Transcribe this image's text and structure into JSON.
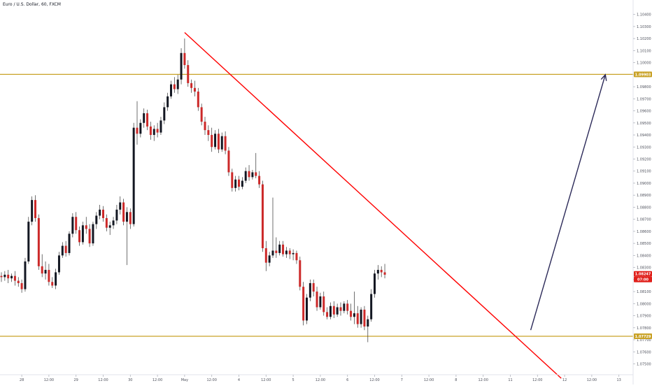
{
  "chart_data": {
    "type": "candlestick",
    "title": "Euro / U.S. Dollar, 60, FXCM",
    "ylim": [
      1.0741,
      1.1052
    ],
    "grid": false,
    "y_ticks": [
      "1.10500",
      "1.10400",
      "1.10300",
      "1.10200",
      "1.10100",
      "1.10000",
      "1.09900",
      "1.09800",
      "1.09700",
      "1.09600",
      "1.09500",
      "1.09400",
      "1.09300",
      "1.09200",
      "1.09100",
      "1.09000",
      "1.08900",
      "1.08800",
      "1.08700",
      "1.08600",
      "1.08500",
      "1.08400",
      "1.08300",
      "1.08200",
      "1.08100",
      "1.08000",
      "1.07900",
      "1.07800",
      "1.07700",
      "1.07600",
      "1.07500"
    ],
    "y_tick_values": [
      1.105,
      1.104,
      1.103,
      1.102,
      1.101,
      1.1,
      1.099,
      1.098,
      1.097,
      1.096,
      1.095,
      1.094,
      1.093,
      1.092,
      1.091,
      1.09,
      1.089,
      1.088,
      1.087,
      1.086,
      1.085,
      1.084,
      1.083,
      1.082,
      1.081,
      1.08,
      1.079,
      1.078,
      1.077,
      1.076,
      1.075
    ],
    "x_ticks": [
      "28",
      "12:00",
      "29",
      "12:00",
      "30",
      "12:00",
      "May",
      "12:00",
      "4",
      "12:00",
      "5",
      "12:00",
      "6",
      "12:00",
      "7",
      "12:00",
      "8",
      "12:00",
      "11",
      "12:00",
      "12",
      "12:00",
      "13"
    ],
    "x_tick_index": [
      6,
      14,
      22,
      30,
      38,
      46,
      54,
      62,
      70,
      78,
      86,
      94,
      102,
      110,
      118,
      126,
      134,
      142,
      150,
      158,
      166,
      174,
      182
    ],
    "series": [
      {
        "type": "ohlc",
        "ohlc": [
          [
            1.0823,
            1.0826,
            1.0818,
            1.0822
          ],
          [
            1.0822,
            1.0827,
            1.0819,
            1.0824
          ],
          [
            1.0824,
            1.0828,
            1.0817,
            1.0821
          ],
          [
            1.0821,
            1.0825,
            1.0818,
            1.0823
          ],
          [
            1.0823,
            1.0827,
            1.0815,
            1.0819
          ],
          [
            1.0819,
            1.0822,
            1.0814,
            1.0817
          ],
          [
            1.0817,
            1.082,
            1.0809,
            1.0812
          ],
          [
            1.0812,
            1.0838,
            1.081,
            1.0835
          ],
          [
            1.0835,
            1.0872,
            1.0833,
            1.0868
          ],
          [
            1.0868,
            1.0889,
            1.0865,
            1.0886
          ],
          [
            1.0886,
            1.089,
            1.0868,
            1.0871
          ],
          [
            1.0871,
            1.0874,
            1.0828,
            1.0831
          ],
          [
            1.0831,
            1.0841,
            1.0822,
            1.0825
          ],
          [
            1.0825,
            1.0835,
            1.082,
            1.0828
          ],
          [
            1.0828,
            1.0833,
            1.0815,
            1.0818
          ],
          [
            1.0818,
            1.0822,
            1.0813,
            1.0815
          ],
          [
            1.0815,
            1.0829,
            1.0812,
            1.0826
          ],
          [
            1.0826,
            1.0843,
            1.0824,
            1.084
          ],
          [
            1.084,
            1.0851,
            1.0838,
            1.0848
          ],
          [
            1.0848,
            1.0852,
            1.0839,
            1.0842
          ],
          [
            1.0842,
            1.086,
            1.084,
            1.0858
          ],
          [
            1.0858,
            1.0875,
            1.0855,
            1.0872
          ],
          [
            1.0872,
            1.0876,
            1.0858,
            1.0861
          ],
          [
            1.0861,
            1.0864,
            1.0848,
            1.0851
          ],
          [
            1.0851,
            1.0868,
            1.0849,
            1.0865
          ],
          [
            1.0865,
            1.0872,
            1.0858,
            1.0862
          ],
          [
            1.0862,
            1.0866,
            1.0847,
            1.085
          ],
          [
            1.085,
            1.0868,
            1.0848,
            1.0866
          ],
          [
            1.0866,
            1.0876,
            1.0862,
            1.0873
          ],
          [
            1.0873,
            1.0882,
            1.087,
            1.0878
          ],
          [
            1.0878,
            1.0881,
            1.0868,
            1.0871
          ],
          [
            1.0871,
            1.0874,
            1.086,
            1.0863
          ],
          [
            1.0863,
            1.0868,
            1.0857,
            1.0865
          ],
          [
            1.0865,
            1.0872,
            1.0862,
            1.0869
          ],
          [
            1.0869,
            1.0882,
            1.0866,
            1.0878
          ],
          [
            1.0878,
            1.0889,
            1.0874,
            1.0884
          ],
          [
            1.0884,
            1.0887,
            1.0865,
            1.0868
          ],
          [
            1.0868,
            1.088,
            1.0832,
            1.0876
          ],
          [
            1.0876,
            1.0879,
            1.0862,
            1.0866
          ],
          [
            1.0866,
            1.095,
            1.0864,
            1.0946
          ],
          [
            1.0946,
            1.0968,
            1.0932,
            1.0941
          ],
          [
            1.0941,
            1.0953,
            1.0938,
            1.095
          ],
          [
            1.095,
            1.0962,
            1.0946,
            1.0958
          ],
          [
            1.0958,
            1.0961,
            1.0944,
            1.0947
          ],
          [
            1.0947,
            1.0951,
            1.0936,
            1.094
          ],
          [
            1.094,
            1.0948,
            1.0935,
            1.0945
          ],
          [
            1.0945,
            1.095,
            1.0938,
            1.0942
          ],
          [
            1.0942,
            1.0955,
            1.094,
            1.0952
          ],
          [
            1.0952,
            1.0967,
            1.0949,
            1.0963
          ],
          [
            1.0963,
            1.0975,
            1.096,
            1.0972
          ],
          [
            1.0972,
            1.0985,
            1.097,
            1.0982
          ],
          [
            1.0982,
            1.0988,
            1.0975,
            1.0978
          ],
          [
            1.0978,
            1.099,
            1.0974,
            1.0986
          ],
          [
            1.0986,
            1.1012,
            1.0982,
            1.1008
          ],
          [
            1.1008,
            1.102,
            1.0995,
            1.0998
          ],
          [
            1.0998,
            1.1002,
            1.098,
            1.0983
          ],
          [
            1.0983,
            1.0986,
            1.0975,
            1.0979
          ],
          [
            1.0979,
            1.0985,
            1.0972,
            1.0976
          ],
          [
            1.0976,
            1.0979,
            1.096,
            1.0963
          ],
          [
            1.0963,
            1.0966,
            1.0948,
            1.0951
          ],
          [
            1.0951,
            1.0955,
            1.094,
            1.0944
          ],
          [
            1.0944,
            1.0948,
            1.0935,
            1.094
          ],
          [
            1.094,
            1.0946,
            1.0926,
            1.093
          ],
          [
            1.093,
            1.0944,
            1.0928,
            1.0941
          ],
          [
            1.0941,
            1.0945,
            1.0925,
            1.0928
          ],
          [
            1.0928,
            1.0942,
            1.0926,
            1.0939
          ],
          [
            1.0939,
            1.0943,
            1.0924,
            1.0927
          ],
          [
            1.0927,
            1.093,
            1.0906,
            1.0909
          ],
          [
            1.0909,
            1.0912,
            1.0893,
            1.0896
          ],
          [
            1.0896,
            1.0906,
            1.0893,
            1.0903
          ],
          [
            1.0903,
            1.0906,
            1.0894,
            1.0897
          ],
          [
            1.0897,
            1.0905,
            1.0895,
            1.0902
          ],
          [
            1.0902,
            1.0913,
            1.09,
            1.091
          ],
          [
            1.091,
            1.0915,
            1.0902,
            1.0905
          ],
          [
            1.0905,
            1.0911,
            1.0903,
            1.0909
          ],
          [
            1.0909,
            1.0925,
            1.0904,
            1.0906
          ],
          [
            1.0906,
            1.091,
            1.0896,
            1.0899
          ],
          [
            1.0899,
            1.0902,
            1.0843,
            1.0846
          ],
          [
            1.0846,
            1.0852,
            1.0827,
            1.0834
          ],
          [
            1.0834,
            1.0843,
            1.0831,
            1.084
          ],
          [
            1.084,
            1.0888,
            1.0838,
            1.0844
          ],
          [
            1.0844,
            1.0855,
            1.0838,
            1.0842
          ],
          [
            1.0842,
            1.0852,
            1.084,
            1.0849
          ],
          [
            1.0849,
            1.0852,
            1.0839,
            1.0841
          ],
          [
            1.0841,
            1.0847,
            1.0838,
            1.0844
          ],
          [
            1.0844,
            1.0846,
            1.0837,
            1.0841
          ],
          [
            1.0841,
            1.0845,
            1.0836,
            1.0842
          ],
          [
            1.0842,
            1.0844,
            1.0833,
            1.0836
          ],
          [
            1.0836,
            1.0839,
            1.0811,
            1.0814
          ],
          [
            1.0814,
            1.0818,
            1.0782,
            1.0786
          ],
          [
            1.0786,
            1.0808,
            1.0783,
            1.0805
          ],
          [
            1.0805,
            1.082,
            1.0802,
            1.0817
          ],
          [
            1.0817,
            1.082,
            1.0806,
            1.081
          ],
          [
            1.081,
            1.0814,
            1.0794,
            1.0797
          ],
          [
            1.0797,
            1.0809,
            1.0795,
            1.0806
          ],
          [
            1.0806,
            1.081,
            1.079,
            1.0793
          ],
          [
            1.0793,
            1.0797,
            1.0787,
            1.0789
          ],
          [
            1.0789,
            1.0801,
            1.0787,
            1.0798
          ],
          [
            1.0798,
            1.0802,
            1.0788,
            1.0791
          ],
          [
            1.0791,
            1.08,
            1.0789,
            1.0797
          ],
          [
            1.0797,
            1.0801,
            1.079,
            1.0794
          ],
          [
            1.0794,
            1.0802,
            1.0792,
            1.08
          ],
          [
            1.08,
            1.0803,
            1.0791,
            1.0794
          ],
          [
            1.0794,
            1.08,
            1.0786,
            1.0789
          ],
          [
            1.0789,
            1.081,
            1.0783,
            1.0792
          ],
          [
            1.0792,
            1.0798,
            1.078,
            1.0783
          ],
          [
            1.0783,
            1.0797,
            1.078,
            1.0795
          ],
          [
            1.0795,
            1.0798,
            1.0778,
            1.0781
          ],
          [
            1.0781,
            1.079,
            1.0768,
            1.0787
          ],
          [
            1.0787,
            1.0812,
            1.0785,
            1.0808
          ],
          [
            1.0808,
            1.0828,
            1.0805,
            1.0825
          ],
          [
            1.0825,
            1.0832,
            1.082,
            1.0828
          ],
          [
            1.0828,
            1.0831,
            1.0822,
            1.0826
          ],
          [
            1.0826,
            1.0833,
            1.0821,
            1.0824
          ]
        ]
      }
    ],
    "horizontal_levels": [
      {
        "value": 1.09903,
        "label": "1.09903",
        "color": "#c9a227"
      },
      {
        "value": 1.07729,
        "label": "1.07729",
        "color": "#c9a227"
      }
    ],
    "trendline": {
      "from": {
        "bar": 54,
        "price": 1.1025
      },
      "to": {
        "bar": 165,
        "price": 1.0738
      },
      "color": "#ff0000"
    },
    "projection_arrow": {
      "from": {
        "bar": 156,
        "price": 1.0778
      },
      "to": {
        "bar": 178,
        "price": 1.099
      },
      "color": "#2c2a59"
    },
    "current_price": {
      "label": "1.08247",
      "countdown": "07:00",
      "color": "#e0201b"
    }
  }
}
